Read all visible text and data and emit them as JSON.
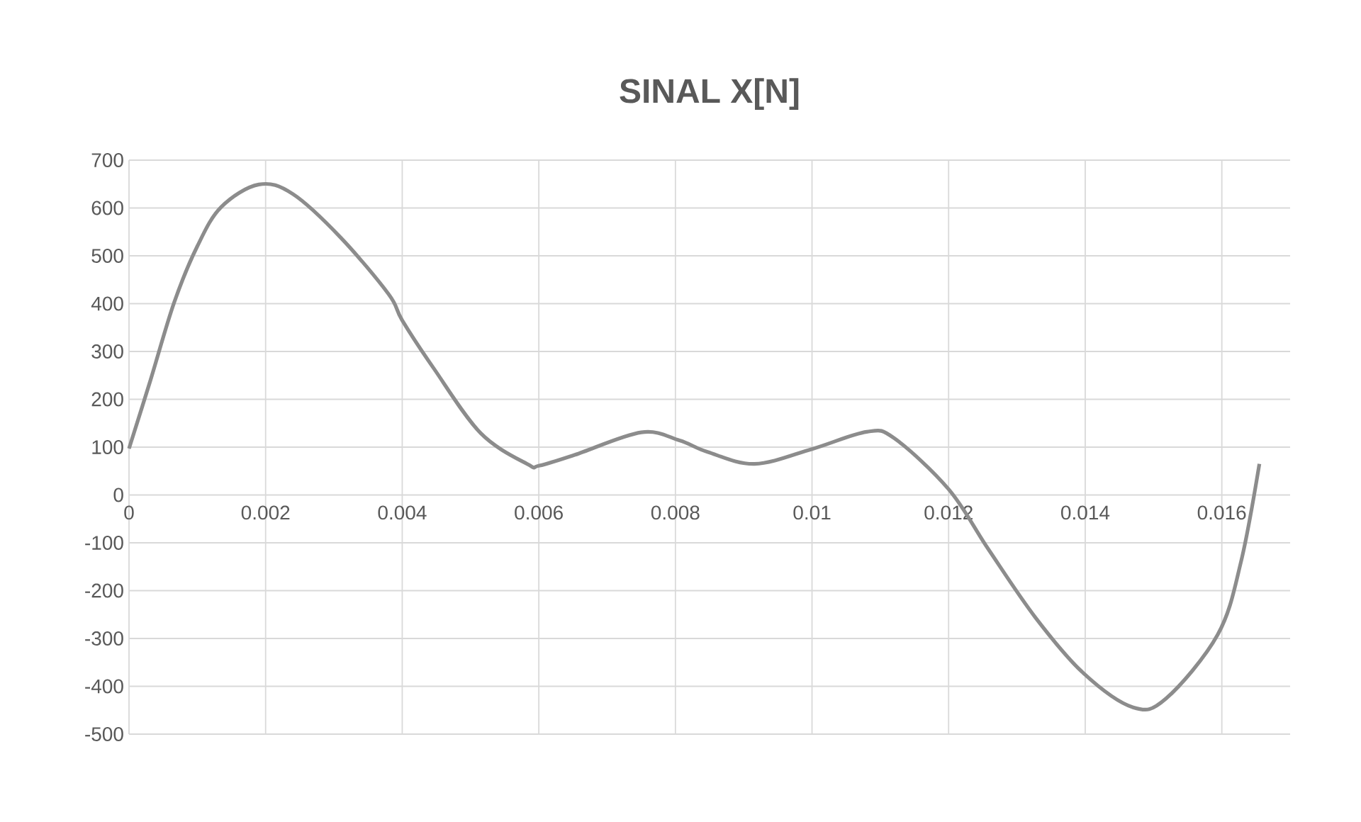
{
  "chart_data": {
    "type": "line",
    "title": "SINAL X[N]",
    "x": [
      0,
      0.00031,
      0.00066,
      0.001,
      0.00135,
      0.0019,
      0.0024,
      0.0031,
      0.0038,
      0.004,
      0.00446,
      0.00515,
      0.00584,
      0.006,
      0.00653,
      0.0075,
      0.00806,
      0.00847,
      0.00916,
      0.01,
      0.0108,
      0.0112,
      0.012,
      0.01258,
      0.01327,
      0.01397,
      0.0147,
      0.01518,
      0.01594,
      0.01628,
      0.01655
    ],
    "series": [
      {
        "color": "#8c8c8c",
        "values": [
          97,
          238,
          402,
          520,
          602,
          649,
          629,
          538,
          420,
          365,
          265,
          129,
          64,
          61,
          84,
          131,
          114,
          90,
          65,
          96,
          132,
          119,
          12,
          -113,
          -256,
          -372,
          -444,
          -426,
          -292,
          -140,
          65
        ]
      }
    ],
    "xlim": [
      0,
      0.017
    ],
    "ylim": [
      -500,
      700
    ],
    "xticks": [
      0,
      0.002,
      0.004,
      0.006,
      0.008,
      0.01,
      0.012,
      0.014,
      0.016
    ],
    "yticks": [
      -500,
      -400,
      -300,
      -200,
      -100,
      0,
      100,
      200,
      300,
      400,
      500,
      600,
      700
    ],
    "grid": true,
    "line_style": "solid"
  }
}
